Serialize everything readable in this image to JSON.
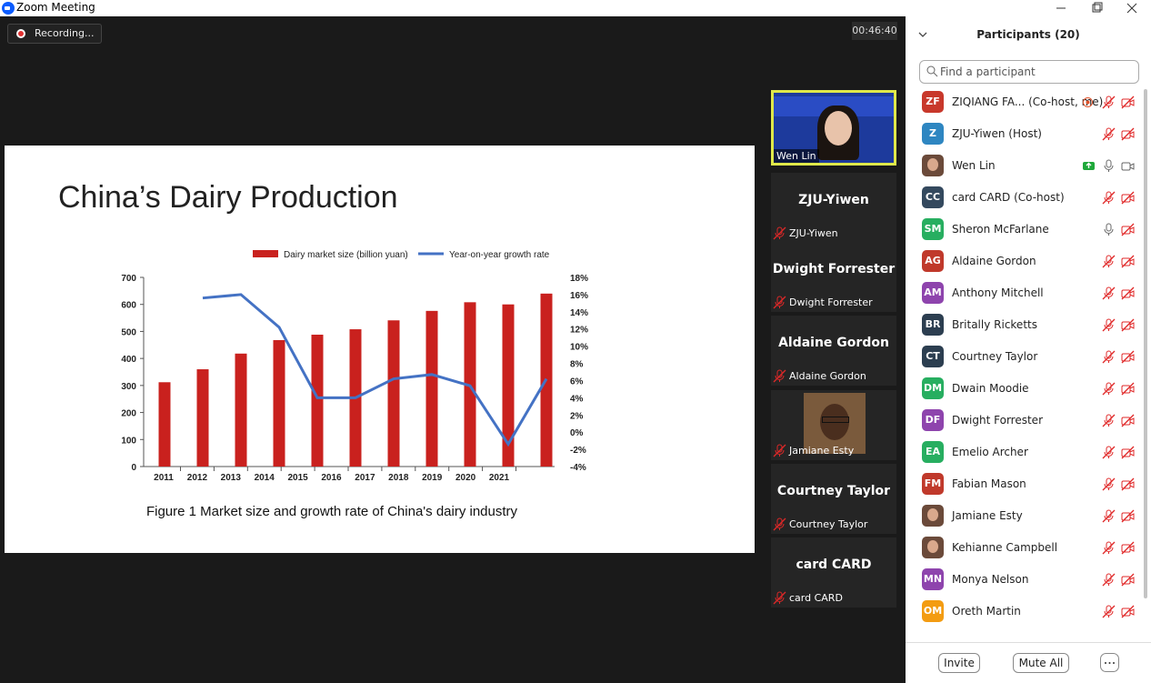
{
  "window": {
    "title": "Zoom Meeting"
  },
  "meeting": {
    "recording": "Recording...",
    "timer": "00:46:40"
  },
  "slide": {
    "title": "China’s Dairy Production",
    "caption": "Figure 1 Market size and growth rate of China's dairy industry"
  },
  "chart_data": {
    "type": "bar",
    "categories": [
      "2011",
      "2012",
      "2013",
      "2014",
      "2015",
      "2016",
      "2017",
      "2018",
      "2019",
      "2020",
      "2021"
    ],
    "series": [
      {
        "name": "Dairy market size (billion yuan)",
        "color": "#c9211e",
        "values": [
          312,
          360,
          418,
          468,
          488,
          508,
          541,
          576,
          608,
          600,
          640
        ]
      },
      {
        "name": "Year-on-year growth rate",
        "type": "line",
        "axis": "y2",
        "color": "#4472c4",
        "values": [
          null,
          15.6,
          16,
          12.2,
          4,
          4,
          6.2,
          6.7,
          5.4,
          -1.4,
          6.2
        ]
      }
    ],
    "ylim": [
      0,
      700
    ],
    "yticks": [
      0,
      100,
      200,
      300,
      400,
      500,
      600,
      700
    ],
    "y2lim": [
      -4,
      18
    ],
    "y2ticks": [
      {
        "value": -4,
        "label": "-4%"
      },
      {
        "value": -2,
        "label": "-2%"
      },
      {
        "value": 0,
        "label": "0%"
      },
      {
        "value": 2,
        "label": "2%"
      },
      {
        "value": 4,
        "label": "4%"
      },
      {
        "value": 6,
        "label": "6%"
      },
      {
        "value": 8,
        "label": "8%"
      },
      {
        "value": 10,
        "label": "10%"
      },
      {
        "value": 12,
        "label": "12%"
      },
      {
        "value": 14,
        "label": "14%"
      },
      {
        "value": 16,
        "label": "16%"
      },
      {
        "value": 18,
        "label": "18%"
      }
    ],
    "legend": "top"
  },
  "gallery": [
    {
      "name": "Wen Lin",
      "video": true
    },
    {
      "name": "ZJU-Yiwen"
    },
    {
      "name": "Dwight Forrester"
    },
    {
      "name": "Aldaine Gordon"
    },
    {
      "name": "Jamiane Esty",
      "photo": true
    },
    {
      "name": "Courtney Taylor"
    },
    {
      "name": "card CARD"
    }
  ],
  "participants": {
    "title": "Participants (20)",
    "search": "Find a participant",
    "list": [
      {
        "initials": "ZF",
        "color": "#c8382b",
        "name": "ZIQIANG FA... (Co-host, me)",
        "mic": "muted",
        "video": "off",
        "recording": true
      },
      {
        "initials": "Z",
        "color": "#2e86c1",
        "name": "ZJU-Yiwen (Host)",
        "mic": "muted",
        "video": "off"
      },
      {
        "photo": true,
        "name": "Wen Lin",
        "mic": "on",
        "video": "on",
        "sharing": true
      },
      {
        "initials": "CC",
        "color": "#34495e",
        "name": "card CARD (Co-host)",
        "mic": "muted",
        "video": "off"
      },
      {
        "initials": "SM",
        "color": "#27ae60",
        "name": "Sheron McFarlane",
        "mic": "on",
        "video": "off"
      },
      {
        "initials": "AG",
        "color": "#c0392b",
        "name": "Aldaine Gordon",
        "mic": "muted",
        "video": "off"
      },
      {
        "initials": "AM",
        "color": "#8e44ad",
        "name": "Anthony Mitchell",
        "mic": "muted",
        "video": "off"
      },
      {
        "initials": "BR",
        "color": "#2c3e50",
        "name": "Britally Ricketts",
        "mic": "muted",
        "video": "off"
      },
      {
        "initials": "CT",
        "color": "#2c3e50",
        "name": "Courtney Taylor",
        "mic": "muted",
        "video": "off"
      },
      {
        "initials": "DM",
        "color": "#27ae60",
        "name": "Dwain Moodie",
        "mic": "muted",
        "video": "off"
      },
      {
        "initials": "DF",
        "color": "#8e44ad",
        "name": "Dwight Forrester",
        "mic": "muted",
        "video": "off"
      },
      {
        "initials": "EA",
        "color": "#27ae60",
        "name": "Emelio Archer",
        "mic": "muted",
        "video": "off"
      },
      {
        "initials": "FM",
        "color": "#c0392b",
        "name": "Fabian Mason",
        "mic": "muted",
        "video": "off"
      },
      {
        "photo": true,
        "name": "Jamiane Esty",
        "mic": "muted",
        "video": "off"
      },
      {
        "photo": true,
        "name": "Kehianne Campbell",
        "mic": "muted",
        "video": "off"
      },
      {
        "initials": "MN",
        "color": "#8e44ad",
        "name": "Monya Nelson",
        "mic": "muted",
        "video": "off"
      },
      {
        "initials": "OM",
        "color": "#f39c12",
        "name": "Oreth Martin",
        "mic": "muted",
        "video": "off"
      }
    ],
    "buttons": [
      "Invite",
      "Mute All"
    ]
  }
}
